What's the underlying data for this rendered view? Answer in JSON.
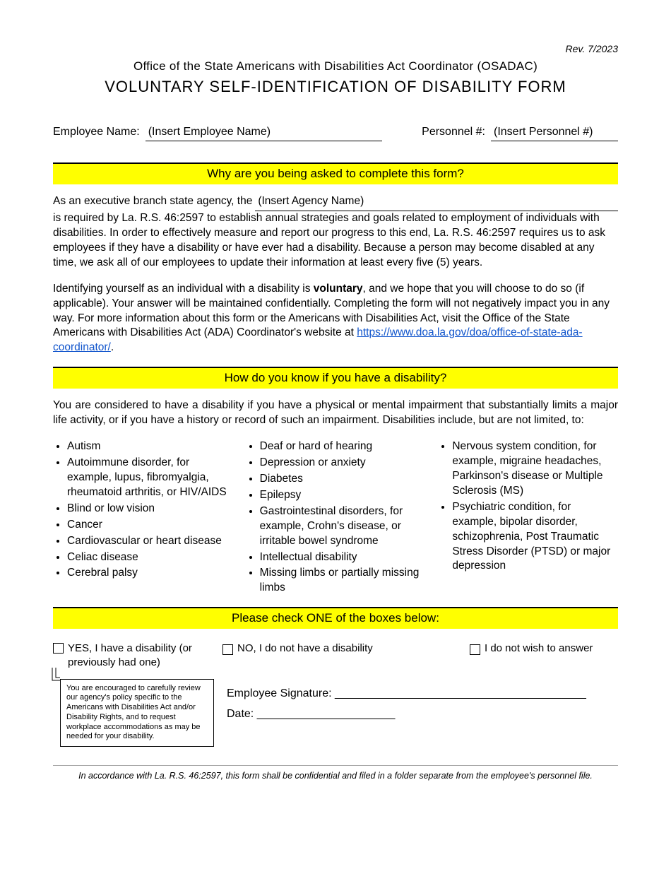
{
  "revision": "Rev. 7/2023",
  "header": {
    "office": "Office of the State Americans with Disabilities Act Coordinator (OSADAC)",
    "title": "VOLUNTARY SELF-IDENTIFICATION OF DISABILITY FORM"
  },
  "employee": {
    "name_label": "Employee Name:",
    "name_value": "(Insert Employee Name)",
    "personnel_label": "Personnel #:",
    "personnel_value": "(Insert Personnel #)"
  },
  "sections": {
    "why_title": "Why are you being asked to complete this form?",
    "how_title": "How do you know if you have a disability?",
    "check_title": "Please check ONE of the boxes below:"
  },
  "why": {
    "lead": "As an executive branch state agency, the",
    "agency_placeholder": "(Insert Agency Name)",
    "body1": "is required by La. R.S. 46:2597 to establish annual strategies and goals related to employment of individuals with disabilities. In order to effectively measure and report our progress to this end, La. R.S. 46:2597 requires us to ask employees if they have a disability or have ever had a disability. Because a person may become disabled at any time, we ask all of our employees to update their information at least every five (5) years.",
    "body2_a": "Identifying yourself as an individual with a disability is ",
    "body2_b": "voluntary",
    "body2_c": ", and we hope that you will choose to do so (if applicable). Your answer will be maintained confidentially. Completing the form will not negatively impact you in any way. For more information about this form or the Americans with Disabilities Act, visit the Office of the State Americans with Disabilities Act (ADA) Coordinator's website at ",
    "link_text": "https://www.doa.la.gov/doa/office-of-state-ada-coordinator/",
    "body2_d": "."
  },
  "how": {
    "intro": "You are considered to have a disability if you have a physical or mental impairment that substantially limits a major life activity, or if you have a history or record of such an impairment. Disabilities include, but are not limited, to:",
    "col1": [
      "Autism",
      "Autoimmune disorder, for example, lupus, fibromyalgia, rheumatoid arthritis, or HIV/AIDS",
      "Blind or low vision",
      "Cancer",
      "Cardiovascular or heart disease",
      "Celiac disease",
      "Cerebral palsy"
    ],
    "col2": [
      "Deaf or hard of hearing",
      "Depression or anxiety",
      "Diabetes",
      "Epilepsy",
      "Gastrointestinal disorders, for example, Crohn's disease, or irritable bowel syndrome",
      "Intellectual disability",
      "Missing limbs or partially missing limbs"
    ],
    "col3": [
      "Nervous system condition, for example, migraine headaches, Parkinson's disease or Multiple Sclerosis (MS)",
      "Psychiatric condition, for example, bipolar disorder, schizophrenia, Post Traumatic Stress Disorder (PTSD) or major depression"
    ]
  },
  "checkboxes": {
    "yes": "YES, I have a disability (or previously had one)",
    "no": "NO, I do not have a disability",
    "decline": "I do not wish to answer"
  },
  "callout": "You are encouraged to carefully review our agency's policy specific to the Americans with Disabilities Act and/or Disability Rights, and to request workplace accommodations as may be needed for your disability.",
  "signature": {
    "sig_label": "Employee Signature: ________________________________________",
    "date_label": "Date: ______________________"
  },
  "footer": "In accordance with La. R.S. 46:2597, this form shall be confidential and filed in a folder separate from the employee's personnel file."
}
